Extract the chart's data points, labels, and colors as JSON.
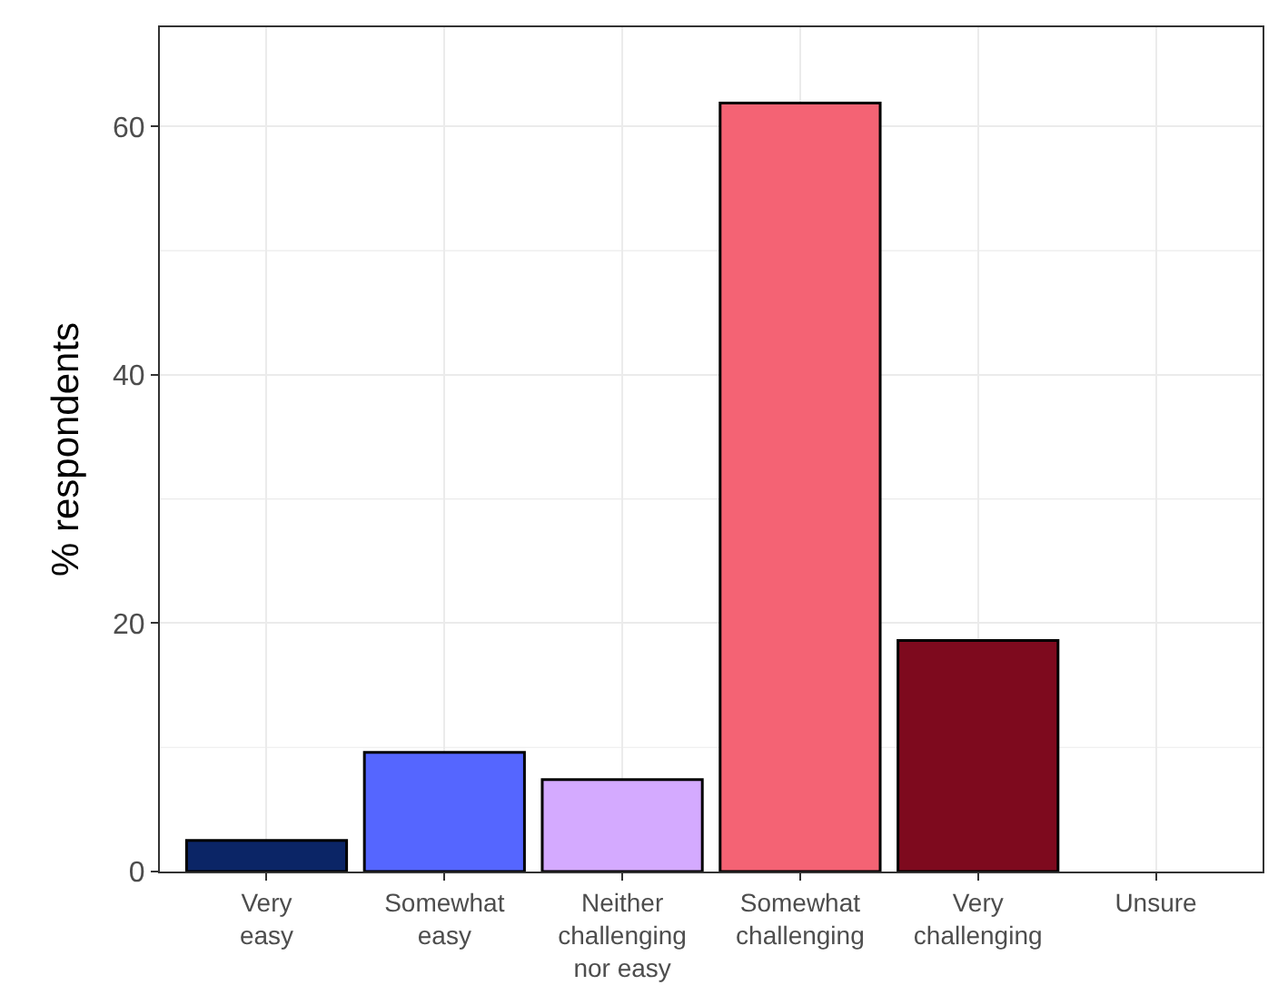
{
  "chart_data": {
    "type": "bar",
    "ylabel": "% respondents",
    "categories": [
      "Very\neasy",
      "Somewhat\neasy",
      "Neither\nchallenging\nnor easy",
      "Somewhat\nchallenging",
      "Very\nchallenging",
      "Unsure"
    ],
    "values": [
      2.5,
      9.6,
      7.4,
      61.9,
      18.6,
      null
    ],
    "colors": [
      "#0b2566",
      "#5566ff",
      "#d4aaff",
      "#f46374",
      "#7e0a1e",
      null
    ],
    "ylim": [
      0,
      68
    ],
    "yticks": [
      0,
      20,
      40,
      60
    ],
    "grid": true
  }
}
